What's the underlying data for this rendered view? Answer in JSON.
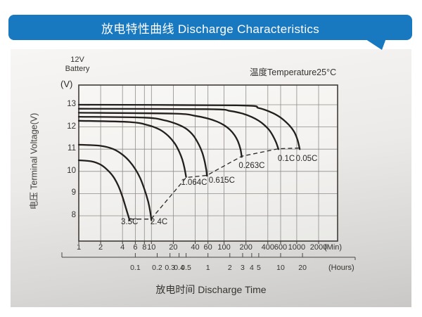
{
  "header": {
    "title": "放电特性曲线 Discharge Characteristics",
    "bg_color": "#1878c0"
  },
  "panel": {
    "battery_type_line1": "12V",
    "battery_type_line2": "Battery",
    "temperature_note": "温度Temperature25°C",
    "y_unit": "(V)",
    "y_axis_title": "电压 Terminal Voltage(V)",
    "x_axis_title": "放电时间 Discharge Time"
  },
  "chart_data": {
    "type": "line",
    "title": "放电特性曲线 Discharge Characteristics",
    "xlabel": "放电时间 Discharge Time",
    "ylabel": "电压 Terminal Voltage(V)",
    "x_scale": "log",
    "x_axis": {
      "minutes_ticks": [
        1,
        2,
        4,
        6,
        8,
        10,
        20,
        40,
        60,
        100,
        200,
        400,
        600,
        1000,
        2000
      ],
      "minutes_unit": "(Min)",
      "hours_ticks": [
        0.1,
        0.2,
        0.3,
        0.4,
        0.5,
        1,
        2,
        3,
        4,
        5,
        10,
        20
      ],
      "hours_unit": "(Hours)"
    },
    "y_axis": {
      "ticks": [
        13,
        12,
        11,
        10,
        9,
        8
      ],
      "range_top": 13.9,
      "range_bottom": 6.8
    },
    "series": [
      {
        "name": "0.05C",
        "label_at": [
          1368,
          10.52
        ],
        "points": [
          [
            1,
            13.0
          ],
          [
            150,
            12.97
          ],
          [
            300,
            12.85
          ],
          [
            450,
            12.65
          ],
          [
            600,
            12.42
          ],
          [
            750,
            12.15
          ],
          [
            850,
            11.95
          ],
          [
            950,
            11.7
          ],
          [
            1030,
            11.4
          ],
          [
            1100,
            11.0
          ]
        ]
      },
      {
        "name": "0.1C",
        "label_at": [
          718,
          10.52
        ],
        "points": [
          [
            1,
            12.82
          ],
          [
            60,
            12.8
          ],
          [
            120,
            12.72
          ],
          [
            180,
            12.6
          ],
          [
            240,
            12.45
          ],
          [
            300,
            12.28
          ],
          [
            360,
            12.08
          ],
          [
            420,
            11.85
          ],
          [
            470,
            11.6
          ],
          [
            520,
            11.3
          ],
          [
            560,
            11.0
          ]
        ]
      },
      {
        "name": "0.263C",
        "label_at": [
          240,
          10.23
        ],
        "points": [
          [
            1,
            12.64
          ],
          [
            20,
            12.6
          ],
          [
            40,
            12.5
          ],
          [
            60,
            12.38
          ],
          [
            80,
            12.24
          ],
          [
            100,
            12.08
          ],
          [
            120,
            11.88
          ],
          [
            140,
            11.62
          ],
          [
            155,
            11.35
          ],
          [
            168,
            11.0
          ],
          [
            175,
            10.65
          ]
        ]
      },
      {
        "name": "0.615C",
        "label_at": [
          93,
          9.56
        ],
        "points": [
          [
            1,
            12.46
          ],
          [
            8,
            12.42
          ],
          [
            15,
            12.3
          ],
          [
            22,
            12.14
          ],
          [
            30,
            11.92
          ],
          [
            38,
            11.6
          ],
          [
            45,
            11.2
          ],
          [
            50,
            10.85
          ],
          [
            54,
            10.45
          ],
          [
            57,
            10.05
          ],
          [
            58,
            9.8
          ]
        ]
      },
      {
        "name": "1.064C",
        "label_at": [
          38.6,
          9.46
        ],
        "points": [
          [
            1,
            12.28
          ],
          [
            5,
            12.22
          ],
          [
            9,
            12.08
          ],
          [
            13,
            11.88
          ],
          [
            17,
            11.6
          ],
          [
            21,
            11.25
          ],
          [
            24,
            10.9
          ],
          [
            26.5,
            10.55
          ],
          [
            28.5,
            10.15
          ],
          [
            30,
            9.75
          ]
        ]
      },
      {
        "name": "2.4C",
        "label_at": [
          12.7,
          7.68
        ],
        "points": [
          [
            1,
            11.2
          ],
          [
            2,
            11.15
          ],
          [
            3,
            11.0
          ],
          [
            4,
            10.75
          ],
          [
            5,
            10.45
          ],
          [
            6,
            10.1
          ],
          [
            7,
            9.7
          ],
          [
            8,
            9.2
          ],
          [
            9,
            8.65
          ],
          [
            9.6,
            8.2
          ],
          [
            10,
            7.8
          ]
        ]
      },
      {
        "name": "3.5C",
        "label_at": [
          5.0,
          7.68
        ],
        "points": [
          [
            1,
            10.5
          ],
          [
            1.5,
            10.45
          ],
          [
            2,
            10.3
          ],
          [
            2.5,
            10.05
          ],
          [
            3,
            9.75
          ],
          [
            3.5,
            9.35
          ],
          [
            4,
            8.85
          ],
          [
            4.5,
            8.3
          ],
          [
            4.8,
            8.0
          ],
          [
            5,
            7.8
          ]
        ]
      }
    ],
    "knee_locus_dashed": [
      [
        5.1,
        7.85
      ],
      [
        9.9,
        7.85
      ],
      [
        30,
        9.72
      ],
      [
        58,
        9.82
      ],
      [
        175,
        10.68
      ],
      [
        560,
        11.02
      ],
      [
        1100,
        11.05
      ]
    ]
  },
  "colors": {
    "accent_blue": "#1878c0",
    "curve": "#231f1c",
    "grid": "#8f8d8a",
    "plot_border": "#403c38",
    "plot_fill": "rgba(252,252,250,0.45)"
  }
}
